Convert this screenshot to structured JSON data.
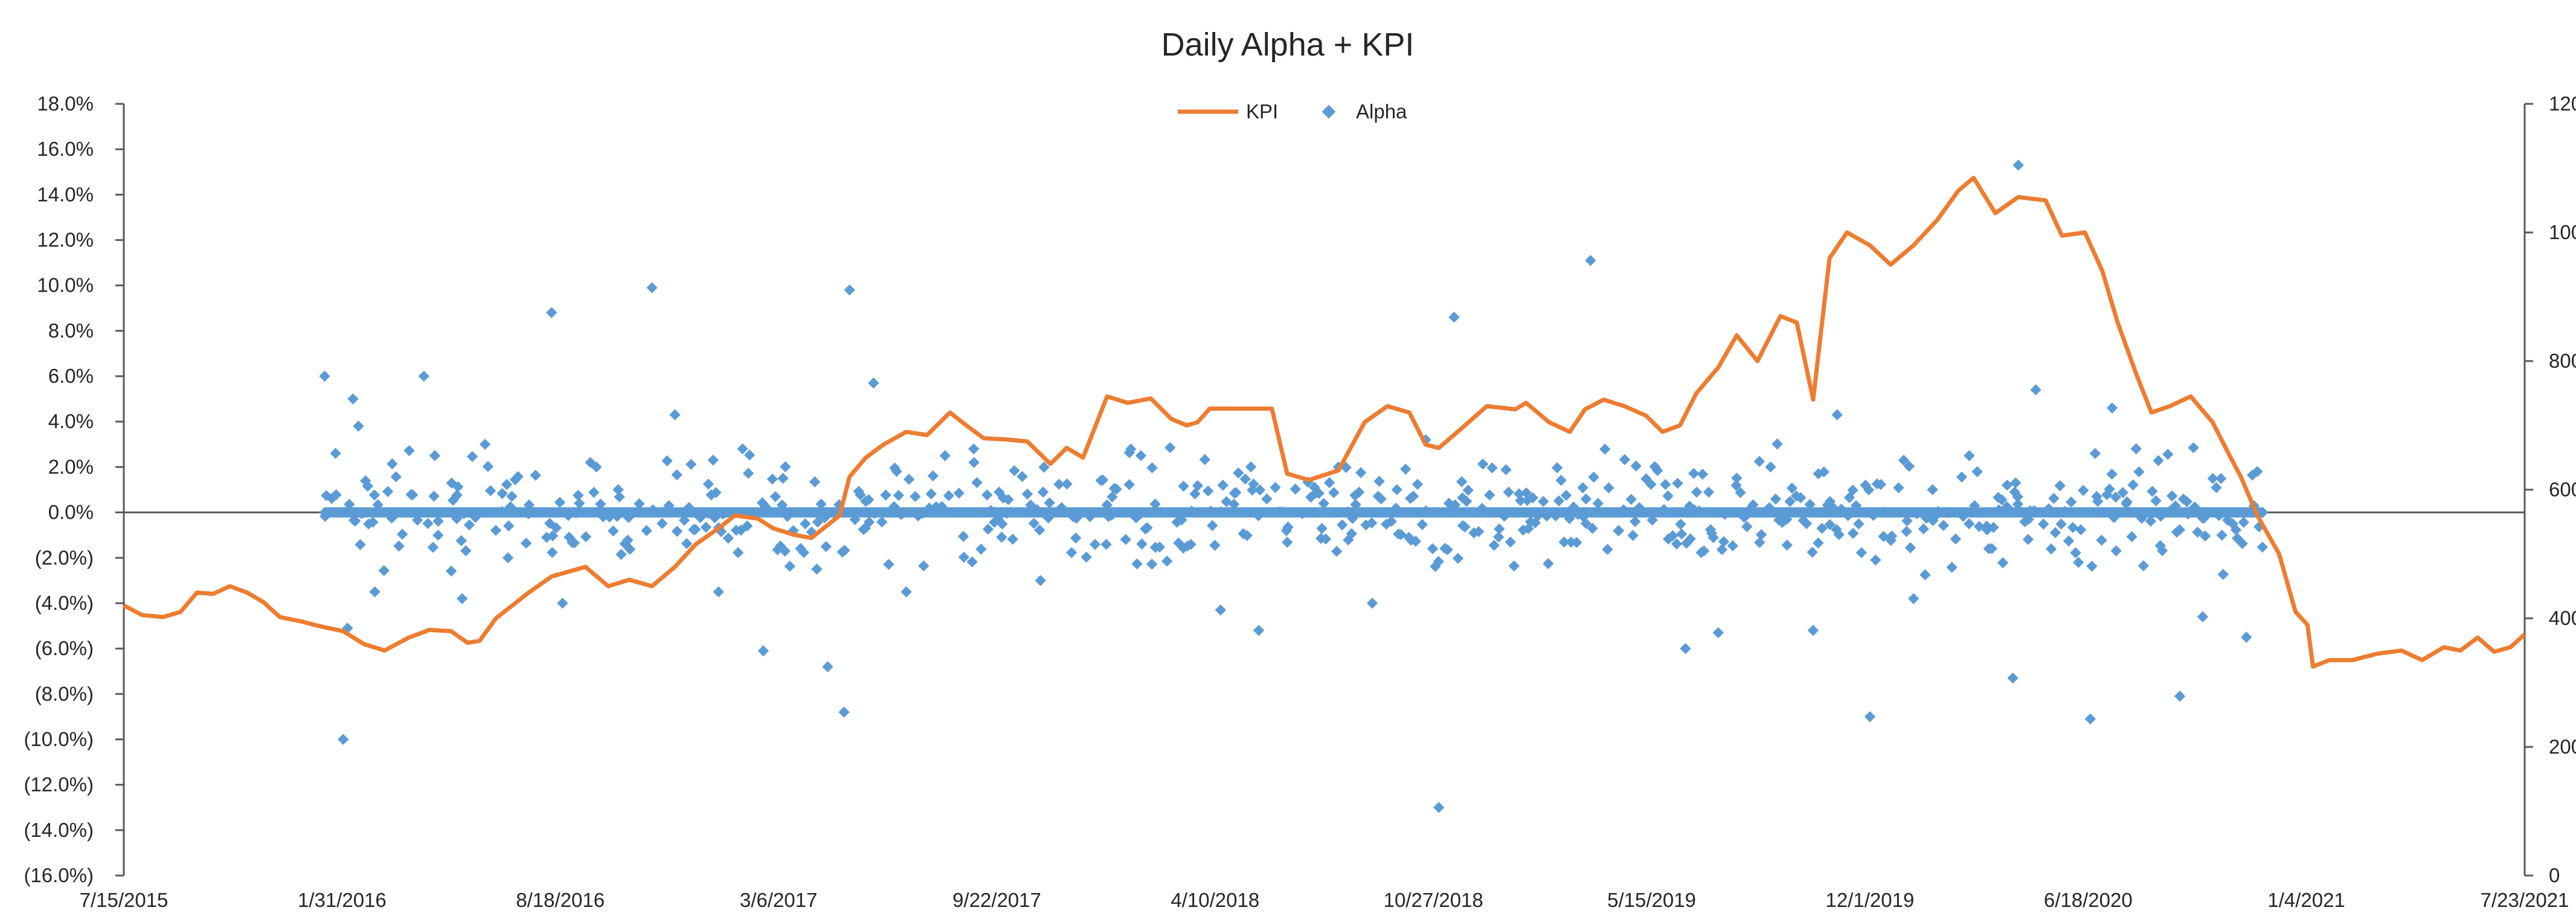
{
  "chart_data": {
    "type": "scatter+line",
    "title": "Daily Alpha + KPI",
    "xlabel": "",
    "ylabel": "",
    "x_range": [
      "2015-07-15",
      "2021-07-23"
    ],
    "x_tick_labels": [
      "7/15/2015",
      "1/31/2016",
      "8/18/2016",
      "3/6/2017",
      "9/22/2017",
      "4/10/2018",
      "10/27/2018",
      "5/15/2019",
      "12/1/2019",
      "6/18/2020",
      "1/4/2021",
      "7/23/2021"
    ],
    "y_left_range": [
      -16.0,
      18.0
    ],
    "y_left_tick_labels": [
      "18.0%",
      "16.0%",
      "14.0%",
      "12.0%",
      "10.0%",
      "8.0%",
      "6.0%",
      "4.0%",
      "2.0%",
      "0.0%",
      "(2.0%)",
      "(4.0%)",
      "(6.0%)",
      "(8.0%)",
      "(10.0%)",
      "(12.0%)",
      "(14.0%)",
      "(16.0%)"
    ],
    "y_right_range": [
      0,
      1200
    ],
    "y_right_tick_labels": [
      "1200",
      "1000",
      "800",
      "600",
      "400",
      "200",
      "0"
    ],
    "legend_position": "top-center",
    "legend": [
      "KPI",
      "Alpha"
    ],
    "grid": false,
    "colors": {
      "kpi": "#ED7D31",
      "alpha": "#5B9BD5",
      "axis": "#595959"
    },
    "series": [
      {
        "name": "KPI",
        "type": "line",
        "axis": "right",
        "points": [
          [
            "2015-07-15",
            420
          ],
          [
            "2015-08-01",
            405
          ],
          [
            "2015-08-20",
            402
          ],
          [
            "2015-09-05",
            410
          ],
          [
            "2015-09-20",
            440
          ],
          [
            "2015-10-05",
            438
          ],
          [
            "2015-10-20",
            450
          ],
          [
            "2015-11-05",
            440
          ],
          [
            "2015-11-20",
            425
          ],
          [
            "2015-12-05",
            402
          ],
          [
            "2015-12-25",
            395
          ],
          [
            "2016-01-10",
            388
          ],
          [
            "2016-02-01",
            380
          ],
          [
            "2016-02-20",
            360
          ],
          [
            "2016-03-10",
            350
          ],
          [
            "2016-04-01",
            370
          ],
          [
            "2016-04-20",
            382
          ],
          [
            "2016-05-10",
            380
          ],
          [
            "2016-05-25",
            362
          ],
          [
            "2016-06-05",
            365
          ],
          [
            "2016-06-20",
            400
          ],
          [
            "2016-07-05",
            420
          ],
          [
            "2016-07-20",
            440
          ],
          [
            "2016-08-10",
            465
          ],
          [
            "2016-09-10",
            480
          ],
          [
            "2016-10-01",
            450
          ],
          [
            "2016-10-20",
            460
          ],
          [
            "2016-11-10",
            450
          ],
          [
            "2016-12-01",
            480
          ],
          [
            "2016-12-20",
            515
          ],
          [
            "2017-01-10",
            540
          ],
          [
            "2017-01-25",
            560
          ],
          [
            "2017-02-15",
            555
          ],
          [
            "2017-03-01",
            540
          ],
          [
            "2017-03-20",
            530
          ],
          [
            "2017-04-05",
            525
          ],
          [
            "2017-05-01",
            560
          ],
          [
            "2017-05-10",
            620
          ],
          [
            "2017-05-25",
            650
          ],
          [
            "2017-06-10",
            670
          ],
          [
            "2017-07-01",
            690
          ],
          [
            "2017-07-20",
            685
          ],
          [
            "2017-08-10",
            720
          ],
          [
            "2017-08-25",
            700
          ],
          [
            "2017-09-10",
            680
          ],
          [
            "2017-10-01",
            678
          ],
          [
            "2017-10-20",
            675
          ],
          [
            "2017-11-10",
            640
          ],
          [
            "2017-11-25",
            665
          ],
          [
            "2017-12-10",
            650
          ],
          [
            "2018-01-01",
            745
          ],
          [
            "2018-01-20",
            735
          ],
          [
            "2018-02-10",
            742
          ],
          [
            "2018-03-01",
            710
          ],
          [
            "2018-03-15",
            700
          ],
          [
            "2018-03-25",
            705
          ],
          [
            "2018-04-05",
            726
          ],
          [
            "2018-06-01",
            726
          ],
          [
            "2018-06-15",
            625
          ],
          [
            "2018-07-05",
            615
          ],
          [
            "2018-08-01",
            630
          ],
          [
            "2018-08-25",
            705
          ],
          [
            "2018-09-15",
            730
          ],
          [
            "2018-10-05",
            720
          ],
          [
            "2018-10-20",
            670
          ],
          [
            "2018-11-01",
            665
          ],
          [
            "2018-11-25",
            700
          ],
          [
            "2018-12-15",
            730
          ],
          [
            "2019-01-10",
            725
          ],
          [
            "2019-01-20",
            735
          ],
          [
            "2019-02-10",
            705
          ],
          [
            "2019-03-01",
            690
          ],
          [
            "2019-03-15",
            725
          ],
          [
            "2019-04-01",
            740
          ],
          [
            "2019-04-20",
            730
          ],
          [
            "2019-05-10",
            715
          ],
          [
            "2019-05-25",
            690
          ],
          [
            "2019-06-10",
            700
          ],
          [
            "2019-06-25",
            750
          ],
          [
            "2019-07-15",
            790
          ],
          [
            "2019-08-01",
            840
          ],
          [
            "2019-08-20",
            800
          ],
          [
            "2019-09-10",
            870
          ],
          [
            "2019-09-25",
            860
          ],
          [
            "2019-10-10",
            740
          ],
          [
            "2019-10-25",
            960
          ],
          [
            "2019-11-10",
            1000
          ],
          [
            "2019-12-01",
            980
          ],
          [
            "2019-12-20",
            950
          ],
          [
            "2020-01-10",
            980
          ],
          [
            "2020-02-01",
            1020
          ],
          [
            "2020-02-20",
            1065
          ],
          [
            "2020-03-05",
            1085
          ],
          [
            "2020-03-25",
            1030
          ],
          [
            "2020-04-15",
            1055
          ],
          [
            "2020-05-10",
            1050
          ],
          [
            "2020-05-25",
            995
          ],
          [
            "2020-06-15",
            1000
          ],
          [
            "2020-07-01",
            940
          ],
          [
            "2020-07-15",
            860
          ],
          [
            "2020-08-01",
            780
          ],
          [
            "2020-08-15",
            720
          ],
          [
            "2020-09-01",
            730
          ],
          [
            "2020-09-20",
            745
          ],
          [
            "2020-10-10",
            705
          ],
          [
            "2020-10-25",
            655
          ],
          [
            "2020-11-05",
            620
          ],
          [
            "2020-11-20",
            560
          ],
          [
            "2020-12-10",
            500
          ],
          [
            "2020-12-25",
            410
          ],
          [
            "2021-01-05",
            390
          ],
          [
            "2021-01-10",
            325
          ],
          [
            "2021-01-25",
            335
          ],
          [
            "2021-02-15",
            335
          ],
          [
            "2021-03-10",
            345
          ],
          [
            "2021-04-01",
            350
          ],
          [
            "2021-04-20",
            335
          ],
          [
            "2021-05-10",
            355
          ],
          [
            "2021-05-25",
            350
          ],
          [
            "2021-06-10",
            370
          ],
          [
            "2021-06-25",
            348
          ],
          [
            "2021-07-10",
            355
          ],
          [
            "2021-07-23",
            375
          ]
        ]
      },
      {
        "name": "Alpha",
        "type": "scatter",
        "axis": "left",
        "points": [
          [
            "2016-01-15",
            6.0
          ],
          [
            "2016-02-01",
            -10.0
          ],
          [
            "2016-02-10",
            5.0
          ],
          [
            "2016-02-05",
            -5.1
          ],
          [
            "2016-01-25",
            2.6
          ],
          [
            "2016-02-15",
            3.8
          ],
          [
            "2016-03-01",
            -3.5
          ],
          [
            "2016-04-15",
            6.0
          ],
          [
            "2016-04-25",
            2.5
          ],
          [
            "2016-05-20",
            -3.8
          ],
          [
            "2016-06-10",
            3.0
          ],
          [
            "2016-07-01",
            -2.0
          ],
          [
            "2016-08-10",
            8.8
          ],
          [
            "2016-08-20",
            -4.0
          ],
          [
            "2016-09-20",
            2.0
          ],
          [
            "2016-10-10",
            1.0
          ],
          [
            "2016-11-10",
            9.9
          ],
          [
            "2016-12-01",
            4.3
          ],
          [
            "2017-01-10",
            -3.5
          ],
          [
            "2017-02-01",
            2.8
          ],
          [
            "2017-02-20",
            -6.1
          ],
          [
            "2017-03-10",
            1.5
          ],
          [
            "2017-04-10",
            -2.5
          ],
          [
            "2017-04-20",
            -6.8
          ],
          [
            "2017-05-10",
            9.8
          ],
          [
            "2017-05-05",
            -8.8
          ],
          [
            "2017-06-01",
            5.7
          ],
          [
            "2017-07-01",
            -3.5
          ],
          [
            "2017-09-01",
            2.2
          ],
          [
            "2017-11-01",
            -3.0
          ],
          [
            "2018-02-01",
            2.5
          ],
          [
            "2018-04-15",
            -4.3
          ],
          [
            "2018-05-20",
            -5.2
          ],
          [
            "2018-08-01",
            2.0
          ],
          [
            "2018-09-01",
            -4.0
          ],
          [
            "2018-11-15",
            8.6
          ],
          [
            "2018-11-01",
            -13.0
          ],
          [
            "2018-10-20",
            3.2
          ],
          [
            "2019-03-20",
            11.1
          ],
          [
            "2019-06-15",
            -6.0
          ],
          [
            "2019-07-15",
            -5.3
          ],
          [
            "2019-09-01",
            2.0
          ],
          [
            "2019-10-10",
            -5.2
          ],
          [
            "2019-11-01",
            4.3
          ],
          [
            "2019-12-01",
            -9.0
          ],
          [
            "2020-01-10",
            -3.8
          ],
          [
            "2020-03-01",
            2.5
          ],
          [
            "2020-04-15",
            15.3
          ],
          [
            "2020-04-10",
            -7.3
          ],
          [
            "2020-05-01",
            5.4
          ],
          [
            "2020-06-20",
            -9.1
          ],
          [
            "2020-07-10",
            4.6
          ],
          [
            "2020-08-01",
            2.8
          ],
          [
            "2020-09-10",
            -8.1
          ],
          [
            "2020-10-01",
            -4.6
          ],
          [
            "2020-11-10",
            -5.5
          ],
          [
            "2020-11-20",
            1.8
          ]
        ]
      }
    ]
  }
}
